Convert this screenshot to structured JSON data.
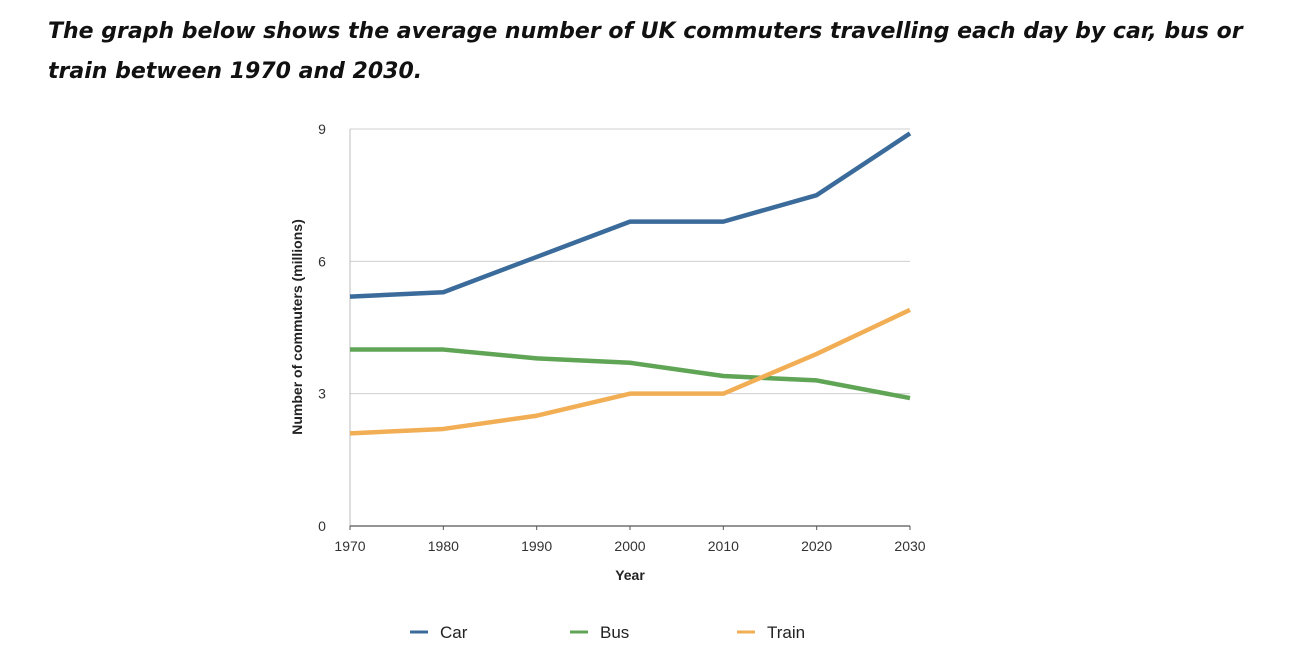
{
  "prompt_text": "The graph below shows the average number of UK commuters travelling each day by car, bus or train between 1970 and 2030.",
  "chart_data": {
    "type": "line",
    "title": "",
    "xlabel": "Year",
    "ylabel": "Number of commuters (millions)",
    "x": [
      1970,
      1980,
      1990,
      2000,
      2010,
      2020,
      2030
    ],
    "ylim": [
      0,
      9
    ],
    "yticks": [
      0,
      3,
      6,
      9
    ],
    "grid": true,
    "legend_position": "bottom",
    "series": [
      {
        "name": "Car",
        "color": "#3b6b9a",
        "values": [
          5.2,
          5.3,
          6.1,
          6.9,
          6.9,
          7.5,
          8.9
        ]
      },
      {
        "name": "Bus",
        "color": "#5fa555",
        "values": [
          4.0,
          4.0,
          3.8,
          3.7,
          3.4,
          3.3,
          2.9
        ]
      },
      {
        "name": "Train",
        "color": "#f2ae55",
        "values": [
          2.1,
          2.2,
          2.5,
          3.0,
          3.0,
          3.9,
          4.9
        ]
      }
    ]
  }
}
